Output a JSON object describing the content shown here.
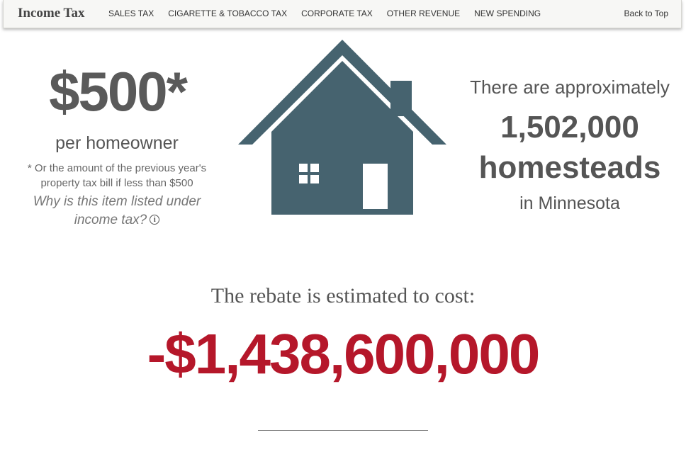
{
  "nav": {
    "brand": "Income Tax",
    "items": [
      "SALES TAX",
      "CIGARETTE & TOBACCO TAX",
      "CORPORATE TAX",
      "OTHER REVENUE",
      "NEW SPENDING"
    ],
    "back": "Back to Top"
  },
  "rebate": {
    "amount": "$500*",
    "unit": "per homeowner",
    "note_line1": "* Or the amount of the previous year's",
    "note_line2": "property tax bill if less than $500",
    "why_line1": "Why is this item listed under",
    "why_line2": "income tax?",
    "info_glyph": "i",
    "info_icon": "info-circle-icon"
  },
  "stat": {
    "intro": "There are approximately",
    "number": "1,502,000",
    "label": "homesteads",
    "region": "in Minnesota"
  },
  "cost": {
    "label": "The rebate is estimated to cost:",
    "value": "-$1,438,600,000"
  },
  "colors": {
    "house": "#46636f",
    "cost_value": "#b5172a",
    "text": "#555555",
    "navbar_bg": "#f7f7f5"
  }
}
